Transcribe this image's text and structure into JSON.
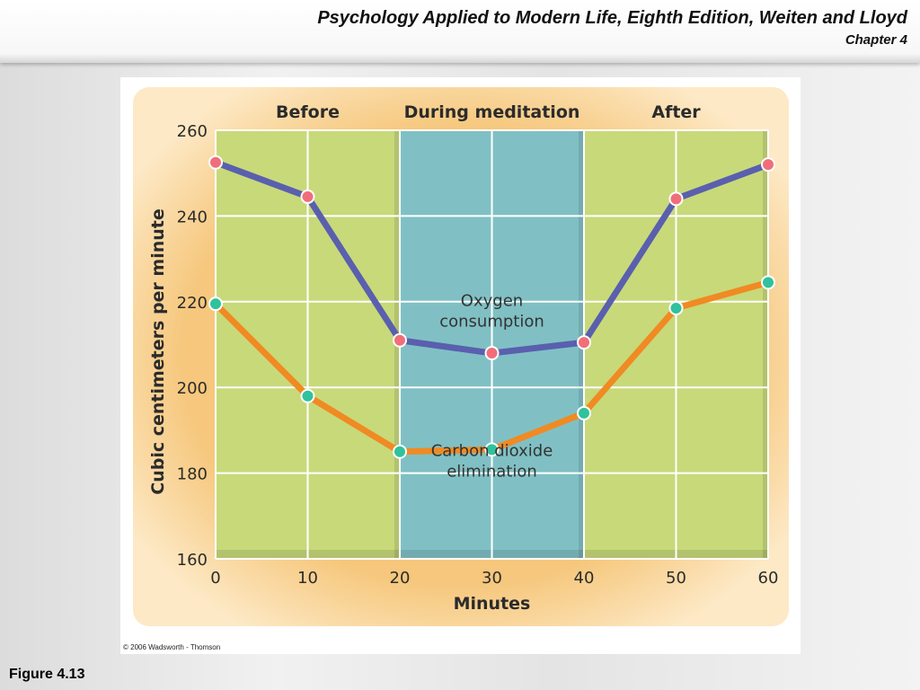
{
  "header": {
    "title": "Psychology Applied to Modern Life, Eighth Edition, Weiten and Lloyd",
    "subtitle": "Chapter 4"
  },
  "footer": {
    "figure_label": "Figure 4.13",
    "copyright": "© 2006 Wadsworth - Thomson"
  },
  "chart_data": {
    "type": "line",
    "xlabel": "Minutes",
    "ylabel": "Cubic centimeters per minute",
    "x": [
      0,
      10,
      20,
      30,
      40,
      50,
      60
    ],
    "xlim": [
      0,
      60
    ],
    "ylim": [
      160,
      260
    ],
    "xticks": [
      "0",
      "10",
      "20",
      "30",
      "40",
      "50",
      "60"
    ],
    "yticks": [
      "160",
      "180",
      "200",
      "220",
      "240",
      "260"
    ],
    "xtick_values": [
      0,
      10,
      20,
      30,
      40,
      50,
      60
    ],
    "ytick_values": [
      160,
      180,
      200,
      220,
      240,
      260
    ],
    "grid": true,
    "periods": [
      {
        "label": "Before",
        "from": 0,
        "to": 20,
        "color": "#c8d97a"
      },
      {
        "label": "During meditation",
        "from": 20,
        "to": 40,
        "color": "#80c0c4"
      },
      {
        "label": "After",
        "from": 40,
        "to": 60,
        "color": "#c8d97a"
      }
    ],
    "series": [
      {
        "annotation": [
          "Oxygen",
          "consumption"
        ],
        "annotation_x": 30,
        "annotation_y": 219,
        "color": "#5a5fae",
        "marker_color": "#f06e7a",
        "values": [
          252.5,
          244.5,
          211,
          208,
          210.5,
          244,
          252
        ]
      },
      {
        "annotation": [
          "Carbon dioxide",
          "elimination"
        ],
        "annotation_x": 30,
        "annotation_y": 184,
        "color": "#f08a23",
        "marker_color": "#2fc29c",
        "values": [
          219.5,
          198,
          185,
          185.5,
          194,
          218.5,
          224.5
        ]
      }
    ]
  }
}
